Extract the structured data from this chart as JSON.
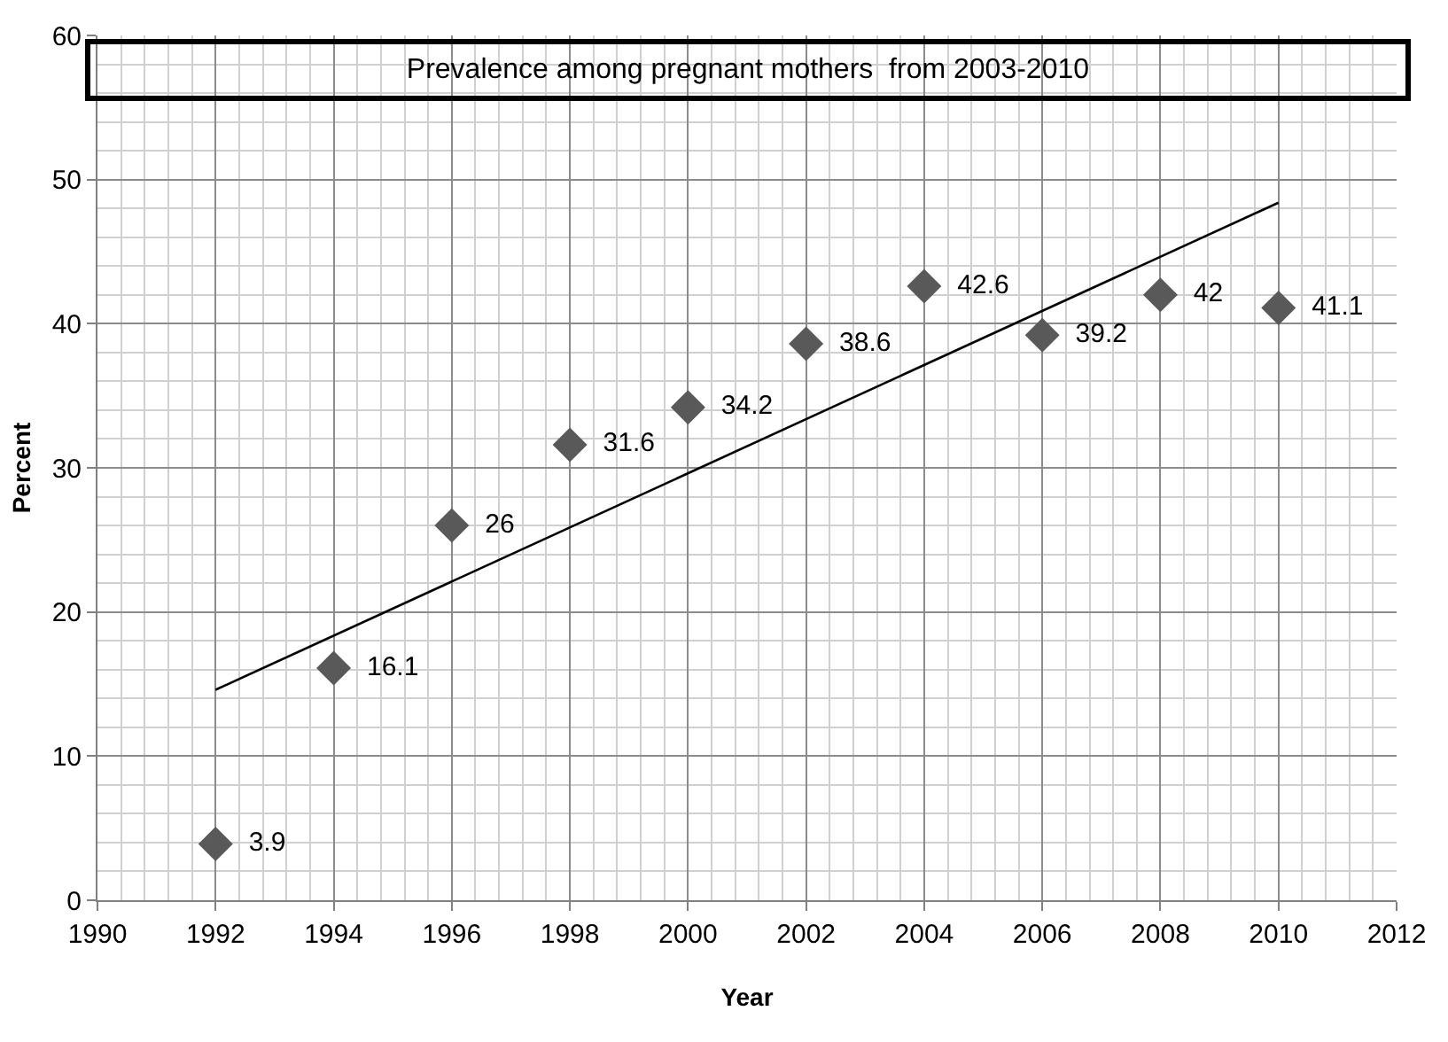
{
  "chart_data": {
    "type": "scatter",
    "title": "Prevalence among pregnant mothers  from 2003-2010",
    "xlabel": "Year",
    "ylabel": "Percent",
    "series": [
      {
        "color": "#595959",
        "marker": "diamond",
        "x": [
          1992,
          1994,
          1996,
          1998,
          2000,
          2002,
          2004,
          2006,
          2008,
          2010
        ],
        "values": [
          3.9,
          16.1,
          26,
          31.6,
          34.2,
          38.6,
          42.6,
          39.2,
          42,
          41.1
        ],
        "value_labels": [
          "3.9",
          "16.1",
          "26",
          "31.6",
          "34.2",
          "38.6",
          "42.6",
          "39.2",
          "42",
          "41.1"
        ]
      },
      {
        "type": "line",
        "color": "#000000",
        "line_style": "solid",
        "x": [
          1992,
          2010
        ],
        "values": [
          14.6,
          48.4
        ]
      }
    ],
    "xlim": [
      1990,
      2012
    ],
    "xticks": [
      1990,
      1992,
      1994,
      1996,
      1998,
      2000,
      2002,
      2004,
      2006,
      2008,
      2010,
      2012
    ],
    "ylim": [
      0,
      60
    ],
    "yticks": [
      0,
      10,
      20,
      30,
      40,
      50,
      60
    ],
    "grid": true
  }
}
